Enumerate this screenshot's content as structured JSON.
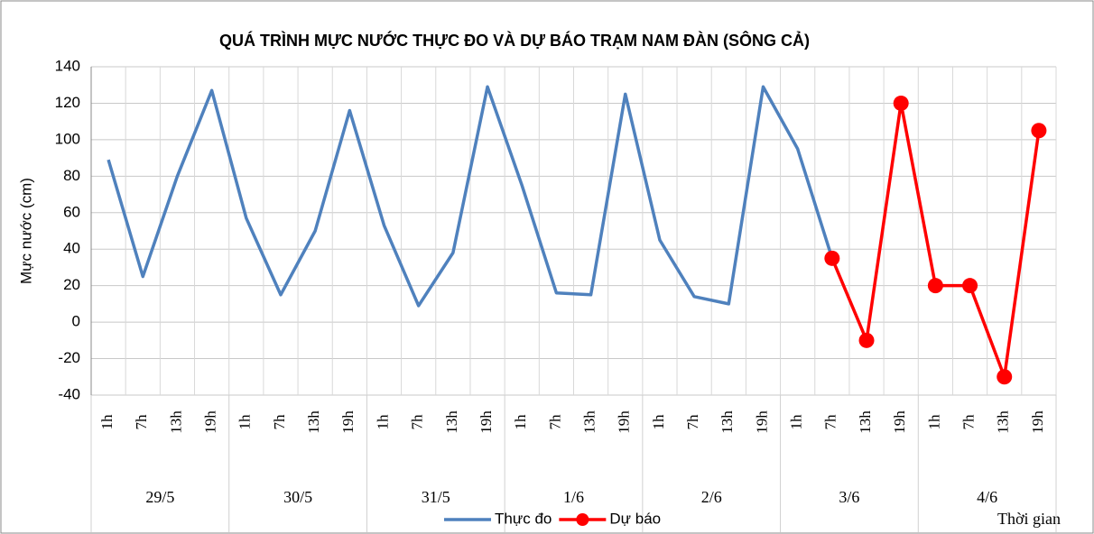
{
  "chart_data": {
    "type": "line",
    "title": "QUÁ TRÌNH MỰC NƯỚC THỰC ĐO VÀ DỰ BÁO TRẠM  NAM ĐÀN (SÔNG CẢ)",
    "y_label": "Mực nước (cm)",
    "x_label": "Thời gian",
    "groups": [
      {
        "label": "29/5",
        "categories": [
          "1h",
          "7h",
          "13h",
          "19h"
        ]
      },
      {
        "label": "30/5",
        "categories": [
          "1h",
          "7h",
          "13h",
          "19h"
        ]
      },
      {
        "label": "31/5",
        "categories": [
          "1h",
          "7h",
          "13h",
          "19h"
        ]
      },
      {
        "label": "1/6",
        "categories": [
          "1h",
          "7h",
          "13h",
          "19h"
        ]
      },
      {
        "label": "2/6",
        "categories": [
          "1h",
          "7h",
          "13h",
          "19h"
        ]
      },
      {
        "label": "3/6",
        "categories": [
          "1h",
          "7h",
          "13h",
          "19h"
        ]
      },
      {
        "label": "4/6",
        "categories": [
          "1h",
          "7h",
          "13h",
          "19h"
        ]
      }
    ],
    "series": [
      {
        "name": "Thực đo",
        "color": "#4f81bd",
        "marker": false,
        "values": [
          89,
          25,
          80,
          127,
          57,
          15,
          50,
          116,
          53,
          9,
          38,
          129,
          75,
          16,
          15,
          125,
          45,
          14,
          10,
          129,
          95,
          35,
          null,
          null,
          null,
          null,
          null,
          null
        ]
      },
      {
        "name": "Dự báo",
        "color": "#ff0000",
        "marker": true,
        "values": [
          null,
          null,
          null,
          null,
          null,
          null,
          null,
          null,
          null,
          null,
          null,
          null,
          null,
          null,
          null,
          null,
          null,
          null,
          null,
          null,
          null,
          35,
          -10,
          120,
          20,
          20,
          -30,
          105
        ]
      }
    ],
    "ylim": [
      -40,
      140
    ],
    "yticks": [
      -40,
      -20,
      0,
      20,
      40,
      60,
      80,
      100,
      120,
      140
    ],
    "grid": true
  }
}
